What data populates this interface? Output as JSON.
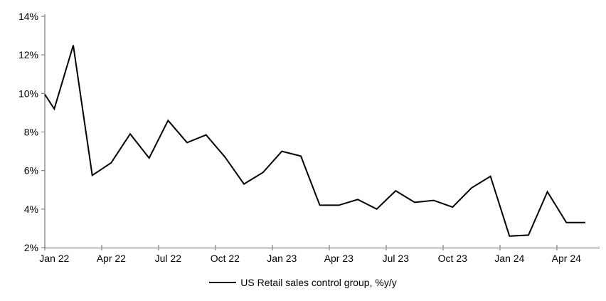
{
  "chart_data": {
    "type": "line",
    "title": "",
    "categories": [
      "Jan 22",
      "Feb 22",
      "Mar 22",
      "Apr 22",
      "May 22",
      "Jun 22",
      "Jul 22",
      "Aug 22",
      "Sep 22",
      "Oct 22",
      "Nov 22",
      "Dec 22",
      "Jan 23",
      "Feb 23",
      "Mar 23",
      "Apr 23",
      "May 23",
      "Jun 23",
      "Jul 23",
      "Aug 23",
      "Sep 23",
      "Oct 23",
      "Nov 23",
      "Dec 23",
      "Jan 24",
      "Feb 24",
      "Mar 24",
      "Apr 24",
      "May 24"
    ],
    "series": [
      {
        "name": "US Retail sales control group, %y/y",
        "color": "#000000",
        "values": [
          9.2,
          12.5,
          5.75,
          6.4,
          7.9,
          6.65,
          8.6,
          7.45,
          7.85,
          6.7,
          5.3,
          5.9,
          7.0,
          6.75,
          4.2,
          4.2,
          4.5,
          4.0,
          4.95,
          4.35,
          4.45,
          4.1,
          5.1,
          5.7,
          2.6,
          2.65,
          4.9,
          3.3,
          3.3
        ]
      }
    ],
    "edge_start_value": 9.95,
    "ylim": [
      2,
      14
    ],
    "y_tick_step": 2,
    "y_tick_labels": [
      "2%",
      "4%",
      "6%",
      "8%",
      "10%",
      "12%",
      "14%"
    ],
    "x_tick_labels": [
      "Jan 22",
      "Apr 22",
      "Jul 22",
      "Oct 22",
      "Jan 23",
      "Apr 23",
      "Jul 23",
      "Oct 23",
      "Jan 24",
      "Apr 24"
    ],
    "x_tick_every": 3,
    "grid": false,
    "legend_position": "bottom",
    "axis_color": "#808080",
    "background_color": "#ffffff"
  },
  "legend": {
    "label": "US Retail sales control group, %y/y"
  }
}
